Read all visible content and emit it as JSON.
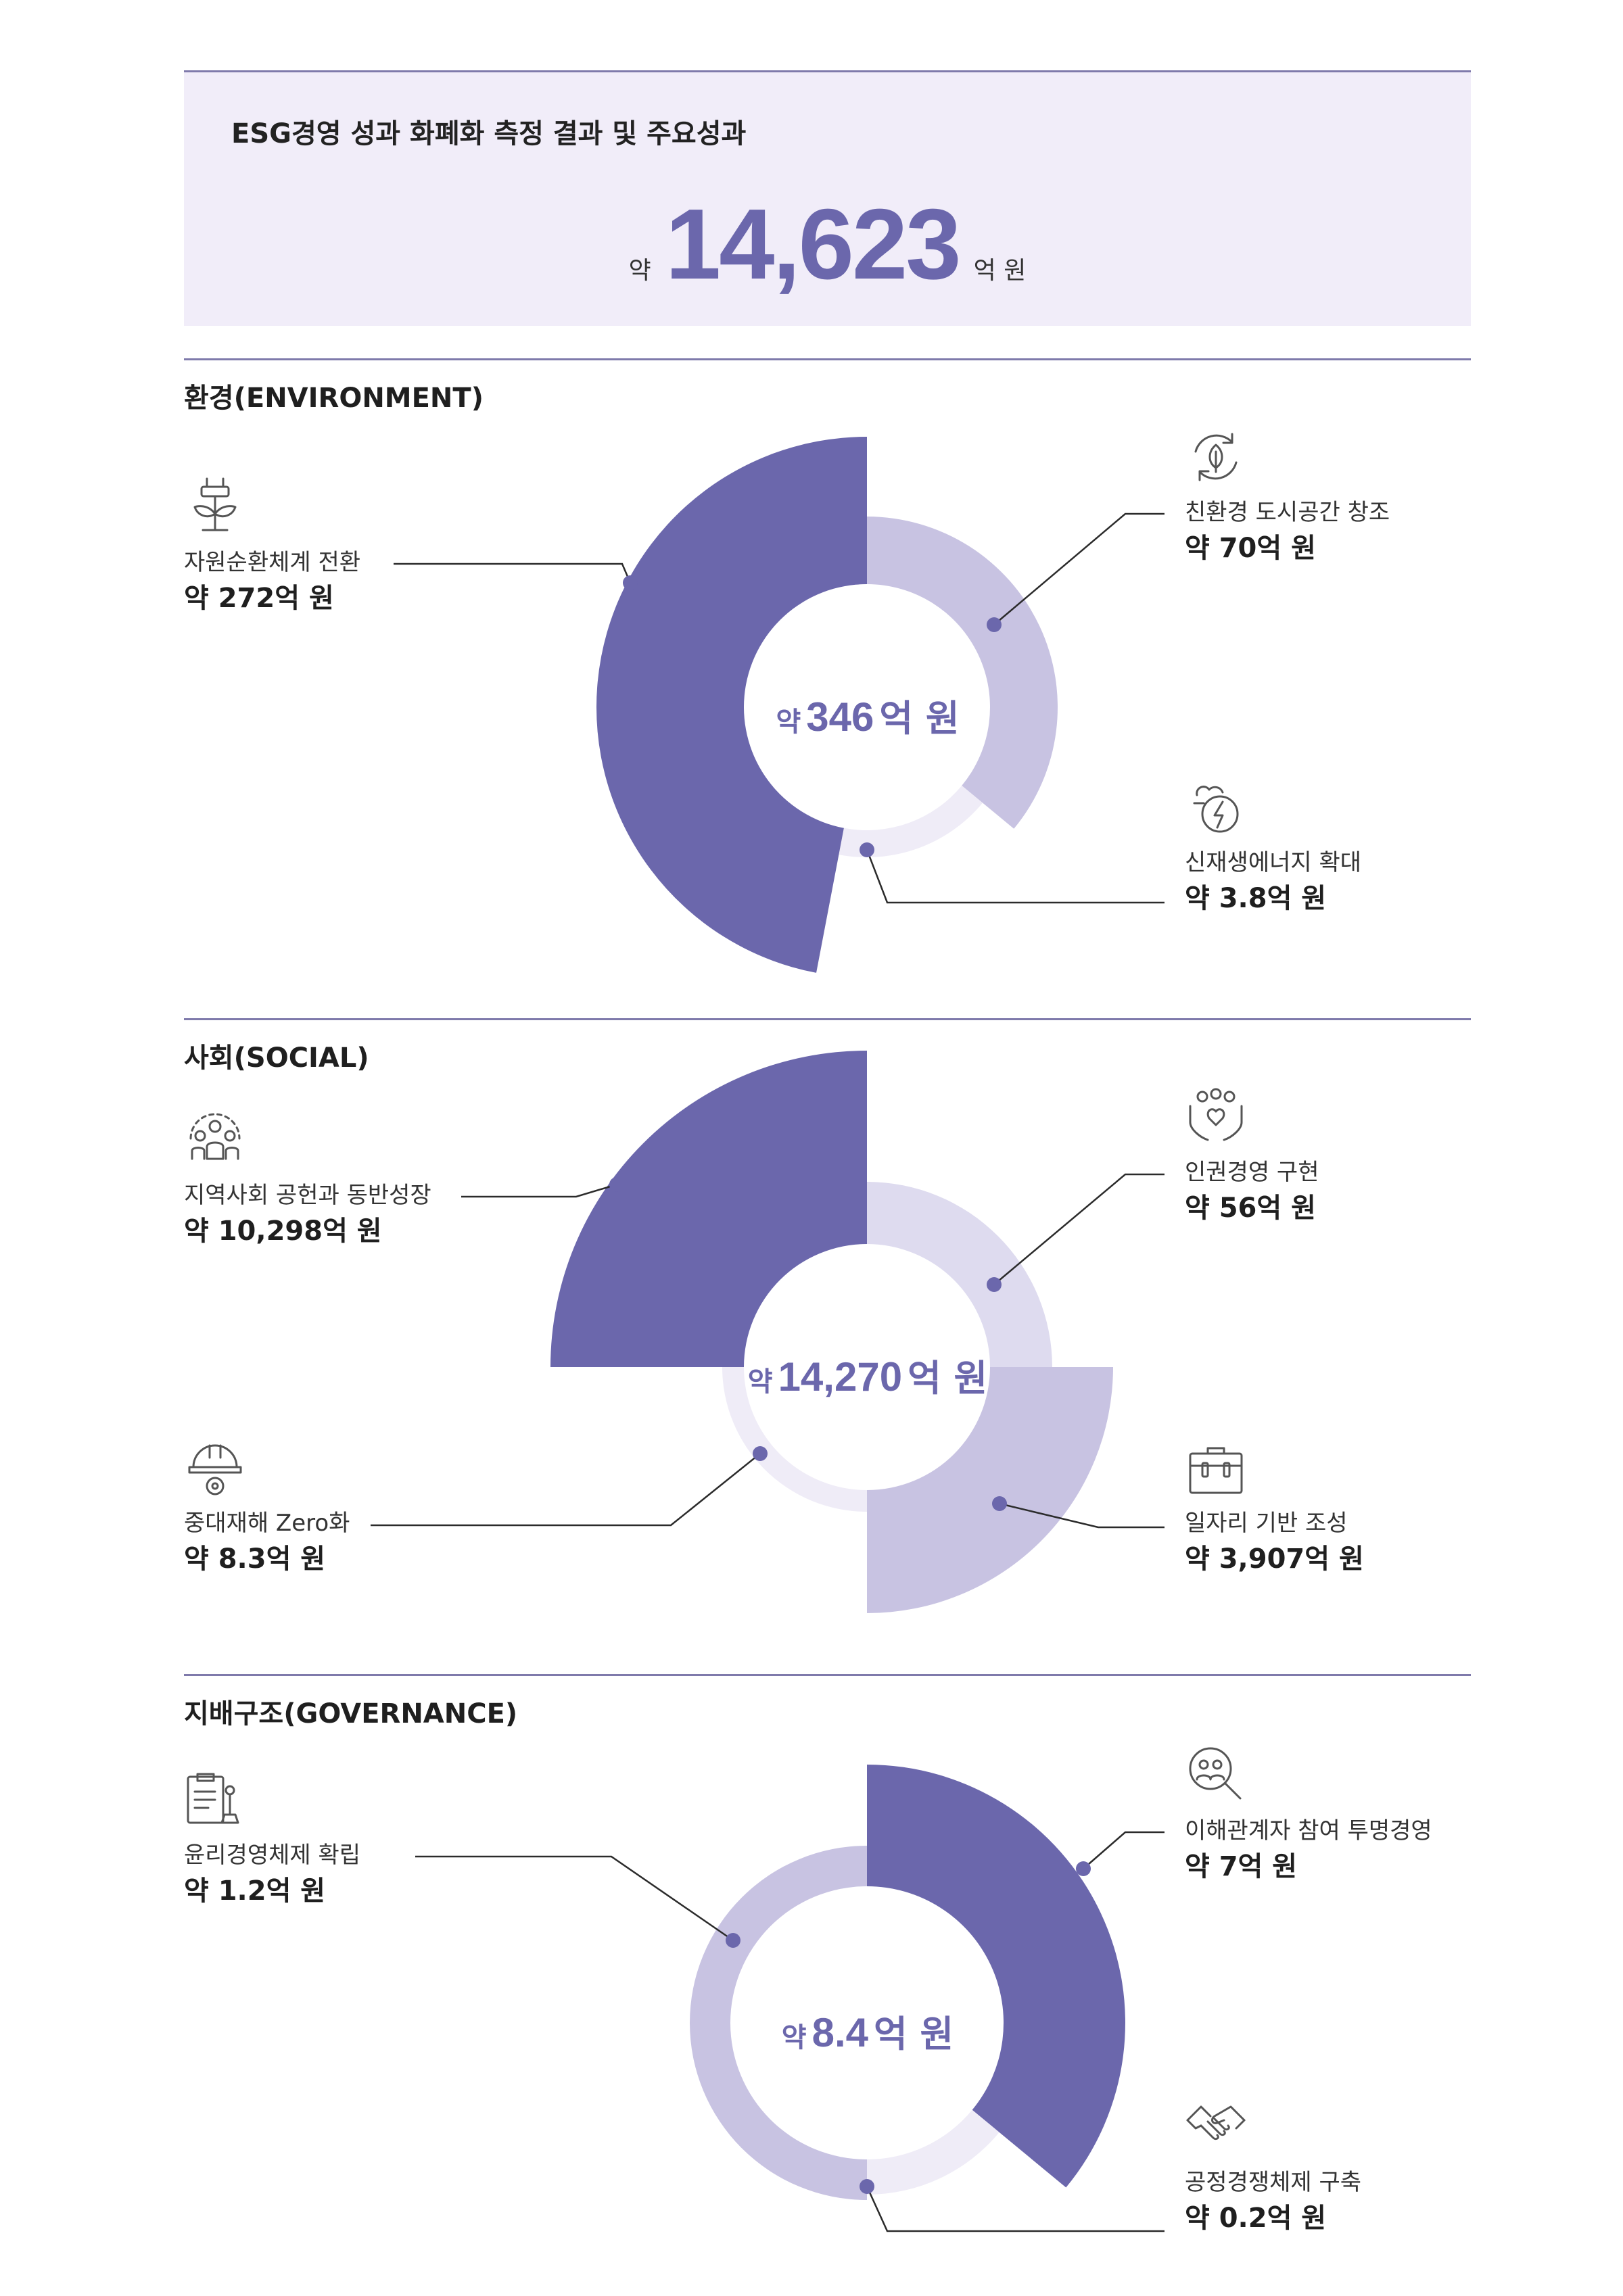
{
  "summary": {
    "title": "ESG경영 성과 화폐화 측정 결과 및 주요성과",
    "prefix": "약",
    "total": "14,623",
    "unit": "억 원"
  },
  "chart_data": [
    {
      "type": "pie",
      "title": "환경(ENVIRONMENT)",
      "center": {
        "prefix": "약",
        "value": "346",
        "unit": "억 원"
      },
      "slices": [
        {
          "name": "자원순환체계 전환",
          "value": 272,
          "display": "약 272억 원",
          "color": "#6b67ac"
        },
        {
          "name": "친환경 도시공간 창조",
          "value": 70,
          "display": "약 70억 원",
          "color": "#c8c3e2"
        },
        {
          "name": "신재생에너지 확대",
          "value": 3.8,
          "display": "약 3.8억 원",
          "color": "#efecf7"
        }
      ]
    },
    {
      "type": "pie",
      "title": "사회(SOCIAL)",
      "center": {
        "prefix": "약",
        "value": "14,270",
        "unit": "억 원"
      },
      "slices": [
        {
          "name": "인권경영 구현",
          "value": 56,
          "display": "약 56억 원",
          "color": "#dedbef"
        },
        {
          "name": "일자리 기반 조성",
          "value": 3907,
          "display": "약 3,907억 원",
          "color": "#c8c3e2"
        },
        {
          "name": "중대재해 Zero화",
          "value": 8.3,
          "display": "약 8.3억 원",
          "color": "#efecf7"
        },
        {
          "name": "지역사회 공헌과 동반성장",
          "value": 10298,
          "display": "약 10,298억 원",
          "color": "#6b67ac"
        }
      ]
    },
    {
      "type": "pie",
      "title": "지배구조(GOVERNANCE)",
      "center": {
        "prefix": "약",
        "value": "8.4",
        "unit": "억 원"
      },
      "slices": [
        {
          "name": "이해관계자 참여 투명경영",
          "value": 7,
          "display": "약 7억 원",
          "color": "#6b67ac"
        },
        {
          "name": "공정경쟁체제 구축",
          "value": 0.2,
          "display": "약 0.2억 원",
          "color": "#efecf7"
        },
        {
          "name": "윤리경영체제 확립",
          "value": 1.2,
          "display": "약 1.2억 원",
          "color": "#c8c3e2"
        }
      ]
    }
  ],
  "icons": {
    "env": [
      "plant-plug-icon",
      "recycle-leaf-icon",
      "renewable-energy-icon"
    ],
    "soc": [
      "community-icon",
      "human-rights-icon",
      "safety-helmet-icon",
      "toolbox-icon"
    ],
    "gov": [
      "ethics-clipboard-icon",
      "stakeholder-search-icon",
      "handshake-icon"
    ]
  }
}
